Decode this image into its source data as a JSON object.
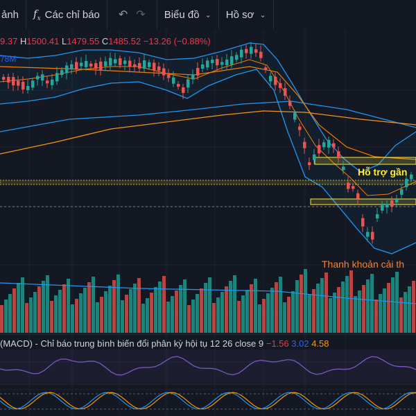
{
  "toolbar": {
    "partial_item": "ảnh",
    "indicators_label": "Các chỉ báo",
    "chart_label": "Biểu đồ",
    "profile_label": "Hồ sơ"
  },
  "ohlc": {
    "open_fragment": "9.37",
    "high_prefix": "H",
    "high": "1500.41",
    "low_prefix": "L",
    "low": "1479.55",
    "close_prefix": "C",
    "close": "1485.52",
    "change": "−13.26 (−0.88%)"
  },
  "volume_label": "78M",
  "annotations": {
    "support": "Hỗ trợ gần",
    "liquidity": "Thanh khoản cải th"
  },
  "macd": {
    "title": "(MACD) - Chỉ báo trung bình biến đổi phân kỳ hội tụ 12 26 close 9",
    "value1": "−1.56",
    "value2": "3.02",
    "value3": "4.58"
  },
  "colors": {
    "up": "#26a69a",
    "down": "#ef5350",
    "bollinger": "#2196f3",
    "ma_orange": "#f7931a",
    "support_zone": "#ffeb3b",
    "liquidity_text": "#ff7f27"
  }
}
